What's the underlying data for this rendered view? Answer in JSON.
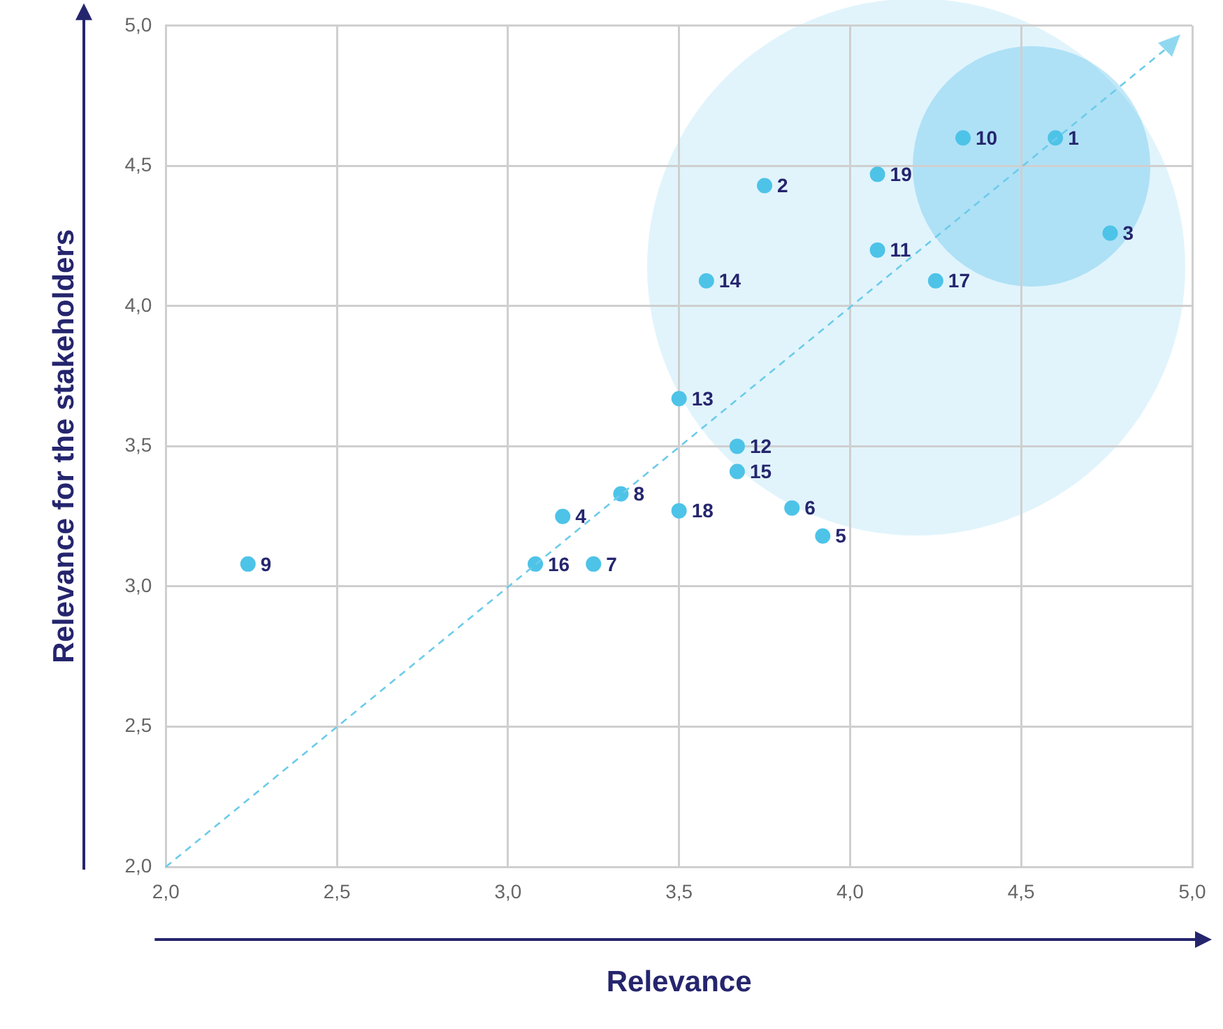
{
  "chart_data": {
    "type": "scatter",
    "xlabel": "Relevance",
    "ylabel": "Relevance for the stakeholders",
    "xlim": [
      2,
      5
    ],
    "ylim": [
      2,
      5
    ],
    "xticks": [
      {
        "value": 2,
        "label": "2,0"
      },
      {
        "value": 2.5,
        "label": "2,5"
      },
      {
        "value": 3,
        "label": "3,0"
      },
      {
        "value": 3.5,
        "label": "3,5"
      },
      {
        "value": 4,
        "label": "4,0"
      },
      {
        "value": 4.5,
        "label": "4,5"
      },
      {
        "value": 5,
        "label": "5,0"
      }
    ],
    "yticks": [
      {
        "value": 2,
        "label": "2,0"
      },
      {
        "value": 2.5,
        "label": "2,5"
      },
      {
        "value": 3,
        "label": "3,0"
      },
      {
        "value": 3.5,
        "label": "3,5"
      },
      {
        "value": 4,
        "label": "4,0"
      },
      {
        "value": 4.5,
        "label": "4,5"
      },
      {
        "value": 5,
        "label": "5,0"
      }
    ],
    "grid": true,
    "marker": "circle",
    "series": [
      {
        "color": "#4ec3e8",
        "x": [
          4.6,
          3.75,
          4.76,
          3.16,
          3.92,
          3.83,
          3.25,
          3.33,
          2.24,
          4.33,
          4.08,
          3.67,
          3.5,
          3.58,
          3.67,
          3.08,
          4.25,
          3.5,
          4.08
        ],
        "values": [
          4.6,
          4.43,
          4.26,
          3.25,
          3.18,
          3.28,
          3.08,
          3.33,
          3.08,
          4.6,
          4.2,
          3.5,
          3.67,
          4.09,
          3.41,
          3.08,
          4.09,
          3.27,
          4.47
        ]
      }
    ],
    "annotations": [
      {
        "text": "1",
        "x": 4.6,
        "y": 4.6
      },
      {
        "text": "2",
        "x": 3.75,
        "y": 4.43
      },
      {
        "text": "3",
        "x": 4.76,
        "y": 4.26
      },
      {
        "text": "4",
        "x": 3.16,
        "y": 3.25
      },
      {
        "text": "5",
        "x": 3.92,
        "y": 3.18
      },
      {
        "text": "6",
        "x": 3.83,
        "y": 3.28
      },
      {
        "text": "7",
        "x": 3.25,
        "y": 3.08
      },
      {
        "text": "8",
        "x": 3.33,
        "y": 3.33
      },
      {
        "text": "9",
        "x": 2.24,
        "y": 3.08
      },
      {
        "text": "10",
        "x": 4.33,
        "y": 4.6
      },
      {
        "text": "11",
        "x": 4.08,
        "y": 4.2
      },
      {
        "text": "12",
        "x": 3.67,
        "y": 3.5
      },
      {
        "text": "13",
        "x": 3.5,
        "y": 3.67
      },
      {
        "text": "14",
        "x": 3.58,
        "y": 4.09
      },
      {
        "text": "15",
        "x": 3.67,
        "y": 3.41
      },
      {
        "text": "16",
        "x": 3.08,
        "y": 3.08
      },
      {
        "text": "17",
        "x": 4.25,
        "y": 4.09
      },
      {
        "text": "18",
        "x": 3.5,
        "y": 3.27
      },
      {
        "text": "19",
        "x": 4.08,
        "y": 4.47
      }
    ]
  }
}
